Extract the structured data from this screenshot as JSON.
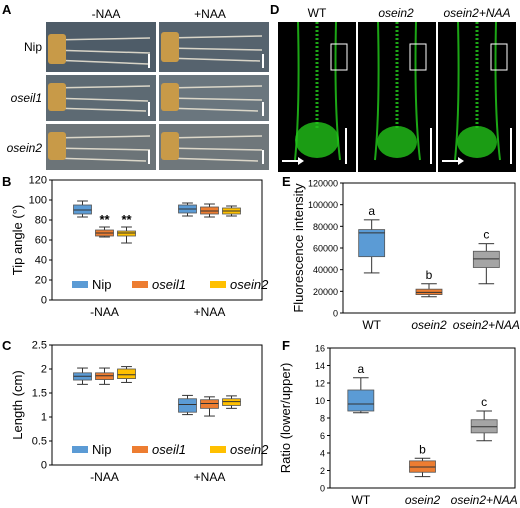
{
  "panel_letters": {
    "A": "A",
    "B": "B",
    "C": "C",
    "D": "D",
    "E": "E",
    "F": "F"
  },
  "panel_A": {
    "col_minus": "-NAA",
    "col_plus": "+NAA",
    "rows": [
      "Nip",
      "oseil1",
      "osein2"
    ]
  },
  "panel_D": {
    "cols": [
      "WT",
      "osein2",
      "osein2+NAA"
    ]
  },
  "colors": {
    "nip": "#5b9bd5",
    "oseil1": "#ed7d31",
    "osein2": "#ffc000",
    "wt": "#5b9bd5",
    "osein2_e": "#ed7d31",
    "naa": "#a5a5a5",
    "fluor": "#22c41a"
  },
  "chart_data": [
    {
      "id": "B",
      "type": "box",
      "ylabel": "Tip angle (°)",
      "ylim": [
        0,
        120
      ],
      "yticks": [
        "0",
        "20",
        "40",
        "60",
        "80",
        "100",
        "120"
      ],
      "categories": [
        "-NAA",
        "+NAA"
      ],
      "legend": [
        "Nip",
        "oseil1",
        "osein2"
      ],
      "series": [
        {
          "name": "Nip",
          "boxes": [
            {
              "min": 83,
              "q1": 86,
              "med": 90,
              "q3": 95,
              "max": 99
            },
            {
              "min": 84,
              "q1": 87,
              "med": 91,
              "q3": 95,
              "max": 97
            }
          ]
        },
        {
          "name": "oseil1",
          "boxes": [
            {
              "min": 63,
              "q1": 64,
              "med": 67,
              "q3": 70,
              "max": 73
            },
            {
              "min": 83,
              "q1": 86,
              "med": 89,
              "q3": 93,
              "max": 96
            }
          ]
        },
        {
          "name": "osein2",
          "boxes": [
            {
              "min": 57,
              "q1": 64,
              "med": 67,
              "q3": 69,
              "max": 73
            },
            {
              "min": 84,
              "q1": 86,
              "med": 89,
              "q3": 92,
              "max": 94
            }
          ]
        }
      ],
      "annotations": [
        "**",
        "**"
      ]
    },
    {
      "id": "C",
      "type": "box",
      "ylabel": "Length (cm)",
      "ylim": [
        0,
        2.5
      ],
      "yticks": [
        "0",
        "0.5",
        "1",
        "1.5",
        "2",
        "2.5"
      ],
      "categories": [
        "-NAA",
        "+NAA"
      ],
      "legend": [
        "Nip",
        "oseil1",
        "osein2"
      ],
      "series": [
        {
          "name": "Nip",
          "boxes": [
            {
              "min": 1.68,
              "q1": 1.77,
              "med": 1.85,
              "q3": 1.92,
              "max": 2.02
            },
            {
              "min": 1.05,
              "q1": 1.1,
              "med": 1.26,
              "q3": 1.38,
              "max": 1.45
            }
          ]
        },
        {
          "name": "oseil1",
          "boxes": [
            {
              "min": 1.68,
              "q1": 1.78,
              "med": 1.86,
              "q3": 1.92,
              "max": 2.02
            },
            {
              "min": 1.02,
              "q1": 1.18,
              "med": 1.28,
              "q3": 1.36,
              "max": 1.42
            }
          ]
        },
        {
          "name": "osein2",
          "boxes": [
            {
              "min": 1.72,
              "q1": 1.8,
              "med": 1.88,
              "q3": 2.0,
              "max": 2.05
            },
            {
              "min": 1.18,
              "q1": 1.24,
              "med": 1.32,
              "q3": 1.38,
              "max": 1.44
            }
          ]
        }
      ]
    },
    {
      "id": "E",
      "type": "box",
      "ylabel": "Fluorescence intensity",
      "ylim": [
        0,
        120000
      ],
      "yticks": [
        "0",
        "20000",
        "40000",
        "60000",
        "80000",
        "100000",
        "120000"
      ],
      "categories": [
        "WT",
        "osein2",
        "osein2+NAA"
      ],
      "letters": [
        "a",
        "b",
        "c"
      ],
      "boxes": [
        {
          "min": 37000,
          "q1": 52000,
          "med": 74000,
          "q3": 77000,
          "max": 86000
        },
        {
          "min": 15000,
          "q1": 17000,
          "med": 19000,
          "q3": 22000,
          "max": 27000
        },
        {
          "min": 27000,
          "q1": 42000,
          "med": 50000,
          "q3": 57000,
          "max": 64000
        }
      ]
    },
    {
      "id": "F",
      "type": "box",
      "ylabel": "Ratio (lower/upper)",
      "ylim": [
        0,
        16
      ],
      "yticks": [
        "0",
        "2",
        "4",
        "6",
        "8",
        "10",
        "12",
        "14",
        "16"
      ],
      "categories": [
        "WT",
        "osein2",
        "osein2+NAA"
      ],
      "letters": [
        "a",
        "b",
        "c"
      ],
      "boxes": [
        {
          "min": 8.6,
          "q1": 8.8,
          "med": 9.6,
          "q3": 11.2,
          "max": 12.6
        },
        {
          "min": 1.3,
          "q1": 1.8,
          "med": 2.4,
          "q3": 3.1,
          "max": 3.4
        },
        {
          "min": 5.4,
          "q1": 6.3,
          "med": 7.0,
          "q3": 7.8,
          "max": 8.8
        }
      ]
    }
  ]
}
